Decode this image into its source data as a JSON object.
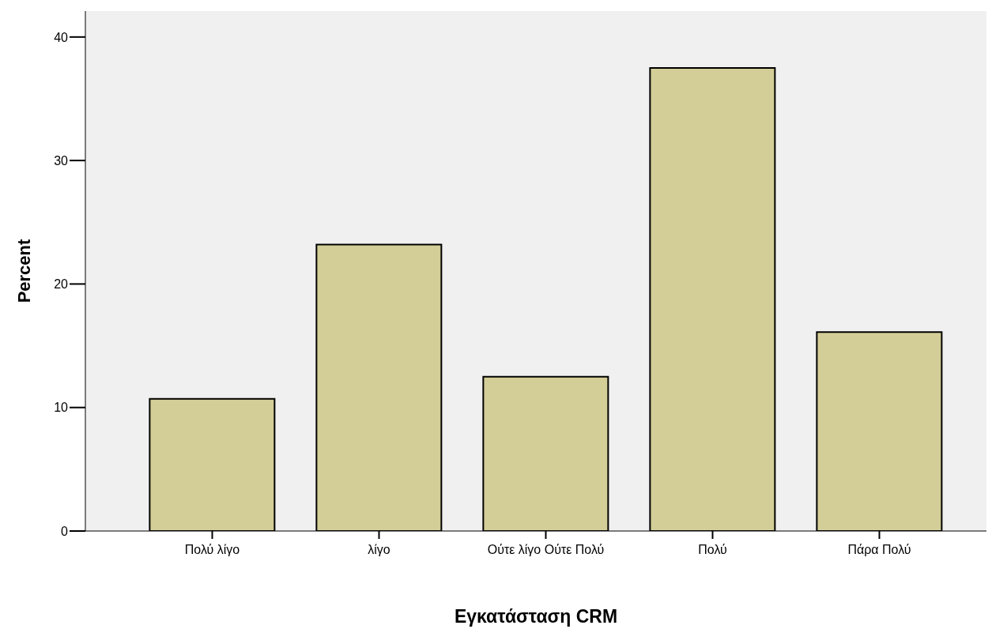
{
  "chart_data": {
    "type": "bar",
    "xlabel": "Εγκατάσταση CRM",
    "ylabel": "Percent",
    "categories": [
      "Πολύ λίγο",
      "λίγο",
      "Ούτε λίγο Ούτε Πολύ",
      "Πολύ",
      "Πάρα Πολύ"
    ],
    "values": [
      10.7,
      23.2,
      12.5,
      37.5,
      16.1
    ],
    "color": "#d3ce97",
    "ylim": [
      0,
      42.1
    ],
    "yticks": [
      0,
      10,
      20,
      30,
      40
    ]
  }
}
